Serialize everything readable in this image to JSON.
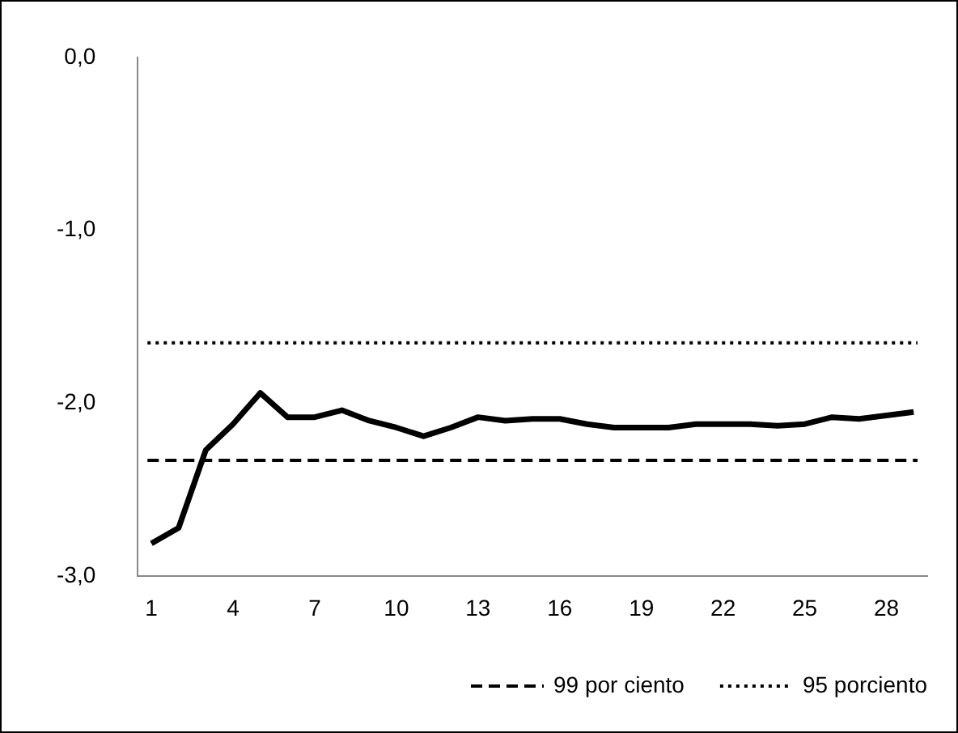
{
  "chart_data": {
    "type": "line",
    "categories": [
      "1",
      null,
      null,
      "4",
      null,
      null,
      "7",
      null,
      null,
      "10",
      null,
      null,
      "13",
      null,
      null,
      "16",
      null,
      null,
      "19",
      null,
      null,
      "22",
      null,
      null,
      "25",
      null,
      null,
      "28",
      null
    ],
    "series": [
      {
        "color": "#000000",
        "values": [
          -2.81,
          -2.72,
          -2.27,
          -2.12,
          -1.94,
          -2.08,
          -2.08,
          -2.04,
          -2.1,
          -2.14,
          -2.19,
          -2.14,
          -2.08,
          -2.1,
          -2.09,
          -2.09,
          -2.12,
          -2.14,
          -2.14,
          -2.14,
          -2.12,
          -2.12,
          -2.12,
          -2.13,
          -2.12,
          -2.08,
          -2.09,
          -2.07,
          -2.05
        ]
      }
    ],
    "ylim": [
      -3,
      0
    ],
    "yticks": [
      {
        "value": -3,
        "label": "-3,0"
      },
      {
        "value": -2,
        "label": "-2,0"
      },
      {
        "value": -1,
        "label": "-1,0"
      },
      {
        "value": 0,
        "label": "0,0"
      }
    ],
    "ref_lines": [
      {
        "axis": "y",
        "value": -2.33,
        "label": "99 por ciento",
        "color": "#000000",
        "line_style": "dashed"
      },
      {
        "axis": "y",
        "value": -1.65,
        "label": "95 porciento",
        "color": "#000000",
        "line_style": "dotted"
      }
    ],
    "grid": false,
    "legend": "bottom",
    "marker": "none",
    "line_style": "solid"
  }
}
